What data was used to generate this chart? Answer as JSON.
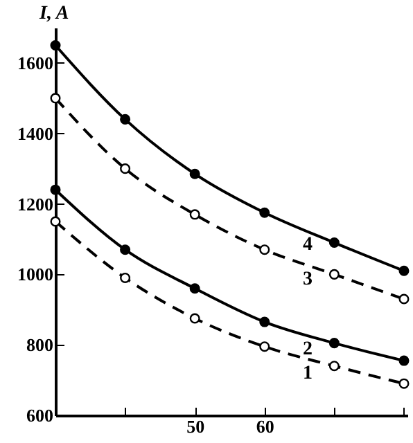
{
  "chart_data": {
    "type": "line",
    "ylabel": "I, A",
    "x": [
      30,
      40,
      50,
      60,
      70,
      80
    ],
    "series": [
      {
        "name": "4",
        "color": "#000000",
        "line_style": "solid",
        "marker": "circle",
        "values": [
          1650,
          1440,
          1285,
          1175,
          1090,
          1010
        ]
      },
      {
        "name": "3",
        "color": "#000000",
        "line_style": "dashed",
        "marker": "circle",
        "values": [
          1500,
          1300,
          1170,
          1070,
          1000,
          930
        ]
      },
      {
        "name": "2",
        "color": "#000000",
        "line_style": "solid",
        "marker": "circle",
        "values": [
          1240,
          1070,
          960,
          865,
          805,
          755
        ]
      },
      {
        "name": "1",
        "color": "#000000",
        "line_style": "dashed",
        "marker": "circle",
        "values": [
          1150,
          990,
          875,
          795,
          740,
          690
        ]
      }
    ],
    "xlim": [
      30,
      80.5
    ],
    "ylim": [
      600,
      1700
    ],
    "xticks": [
      {
        "value": 30,
        "label": null
      },
      {
        "value": 40,
        "label": null
      },
      50,
      60,
      {
        "value": 70,
        "label": null
      },
      {
        "value": 80,
        "label": null
      }
    ],
    "yticks": [
      600,
      800,
      1000,
      1200,
      1400,
      1600
    ],
    "grid": false
  }
}
